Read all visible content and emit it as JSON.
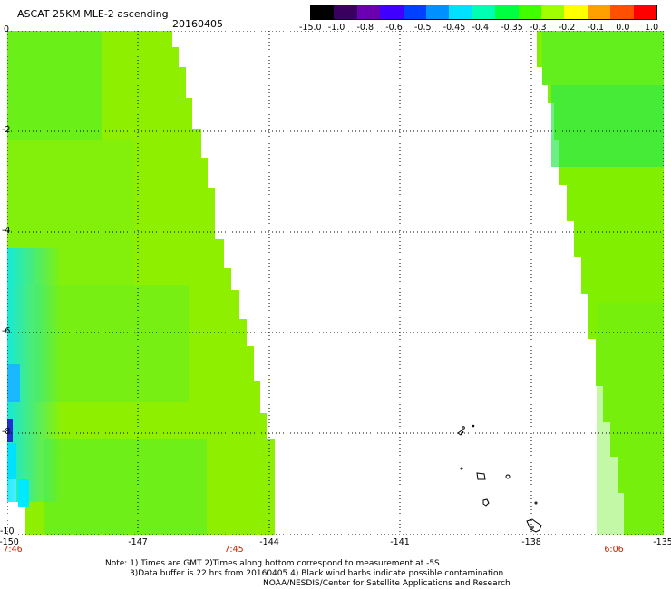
{
  "header": {
    "title": "ASCAT 25KM MLE-2 ascending",
    "date": "20160405"
  },
  "colorbar": {
    "labels": [
      "-15.0",
      "-1.0",
      "-0.8",
      "-0.6",
      "-0.5",
      "-0.45",
      "-0.4",
      "-0.35",
      "-0.3",
      "-0.2",
      "-0.1",
      "0.0",
      "1.0"
    ],
    "colors": [
      "#000000",
      "#3a0060",
      "#6a00b0",
      "#4000ff",
      "#0040ff",
      "#0090ff",
      "#00e0ff",
      "#00ffb0",
      "#00ff40",
      "#40ff00",
      "#a0ff00",
      "#ffff00",
      "#ffa000",
      "#ff5000",
      "#ff0000"
    ]
  },
  "map": {
    "lat_labels": [
      "0",
      "-2",
      "-4",
      "-6",
      "-8",
      "-10"
    ],
    "lon_labels": [
      "-150",
      "-147",
      "-144",
      "-141",
      "-138",
      "-135"
    ],
    "time_labels": [
      "7:46",
      "7:45",
      "6:06"
    ]
  },
  "footer": {
    "note1": "Note: 1) Times are GMT 2)Times along bottom correspond to measurement at -5S",
    "note2": "3)Data buffer is 22 hrs from 20160405 4) Black wind barbs indicate possible contamination",
    "note3": "NOAA/NESDIS/Center for Satellite Applications and Research"
  }
}
